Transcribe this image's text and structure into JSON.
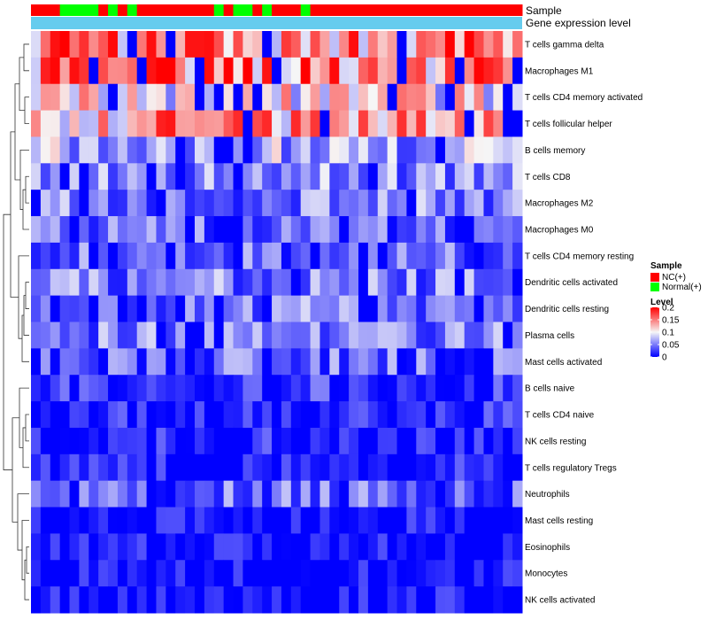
{
  "chart_data": {
    "type": "heatmap",
    "title": "",
    "n_samples": 51,
    "column_annotations": [
      {
        "name": "Sample",
        "groups": [
          "NC(+)",
          "NC(+)",
          "NC(+)",
          "Normal(+)",
          "Normal(+)",
          "Normal(+)",
          "Normal(+)",
          "NC(+)",
          "Normal(+)",
          "NC(+)",
          "Normal(+)",
          "NC(+)",
          "NC(+)",
          "NC(+)",
          "NC(+)",
          "NC(+)",
          "NC(+)",
          "NC(+)",
          "NC(+)",
          "Normal(+)",
          "NC(+)",
          "Normal(+)",
          "Normal(+)",
          "NC(+)",
          "Normal(+)",
          "NC(+)",
          "NC(+)",
          "NC(+)",
          "Normal(+)",
          "NC(+)",
          "NC(+)",
          "NC(+)",
          "NC(+)",
          "NC(+)",
          "NC(+)",
          "NC(+)",
          "NC(+)",
          "NC(+)",
          "NC(+)",
          "NC(+)",
          "NC(+)",
          "NC(+)",
          "NC(+)",
          "NC(+)",
          "NC(+)",
          "NC(+)",
          "NC(+)",
          "NC(+)",
          "NC(+)",
          "NC(+)",
          "NC(+)"
        ]
      },
      {
        "name": "Gene expression level",
        "color": "#66ccee"
      }
    ],
    "rows": [
      "T cells gamma delta",
      "Macrophages M1",
      "T cells CD4 memory activated",
      "T cells follicular helper",
      "B cells memory",
      "T cells CD8",
      "Macrophages M2",
      "Macrophages M0",
      "T cells CD4 memory resting",
      "Dendritic cells activated",
      "Dendritic cells resting",
      "Plasma cells",
      "Mast cells activated",
      "B cells naive",
      "T cells CD4 naive",
      "NK cells resting",
      "T cells regulatory  Tregs",
      "Neutrophils",
      "Mast cells resting",
      "Eosinophils",
      "Monocytes",
      "NK cells activated"
    ],
    "row_means": [
      0.14,
      0.14,
      0.1,
      0.13,
      0.07,
      0.06,
      0.05,
      0.04,
      0.04,
      0.05,
      0.055,
      0.05,
      0.04,
      0.02,
      0.015,
      0.015,
      0.01,
      0.04,
      0.005,
      0.005,
      0.003,
      0.005
    ],
    "seed": 73,
    "scale": {
      "label": "Level",
      "min": 0,
      "max": 0.2,
      "ticks": [
        0.2,
        0.15,
        0.1,
        0.05,
        0
      ],
      "tick_labels": [
        "0.2",
        "0.15",
        "0.1",
        "0.05",
        "0"
      ],
      "colors": {
        "low": "#0000ff",
        "mid": "#f6f6f6",
        "high": "#ff0000"
      }
    },
    "legend": {
      "title": "Sample",
      "placement": "right",
      "entries": [
        {
          "label": "NC(+)",
          "color": "#ff0000"
        },
        {
          "label": "Normal(+)",
          "color": "#00ff00"
        }
      ]
    },
    "dendrogram": "rows"
  }
}
